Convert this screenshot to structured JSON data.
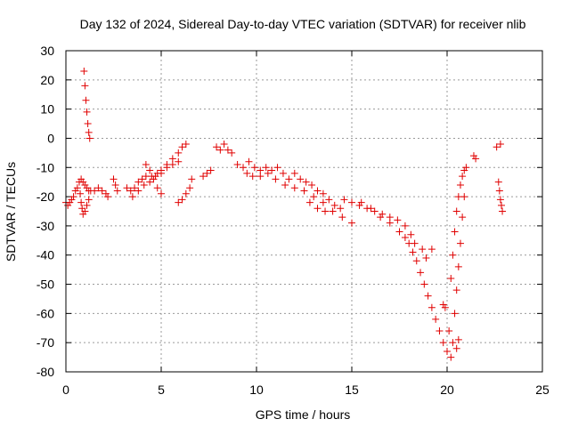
{
  "chart_data": {
    "type": "scatter",
    "title": "Day 132 of 2024, Sidereal Day-to-day VTEC variation (SDTVAR) for receiver nlib",
    "xlabel": "GPS time / hours",
    "ylabel": "SDTVAR / TECUs",
    "xlim": [
      0,
      25
    ],
    "ylim": [
      -80,
      30
    ],
    "xticks": [
      0,
      5,
      10,
      15,
      20,
      25
    ],
    "yticks": [
      30,
      20,
      10,
      0,
      -10,
      -20,
      -30,
      -40,
      -50,
      -60,
      -70,
      -80
    ],
    "grid": true,
    "marker": "+",
    "color": "#e00000",
    "series": [
      {
        "name": "nlib",
        "points": [
          [
            0.0,
            -22
          ],
          [
            0.1,
            -23
          ],
          [
            0.2,
            -22
          ],
          [
            0.3,
            -21
          ],
          [
            0.4,
            -20
          ],
          [
            0.5,
            -18
          ],
          [
            0.6,
            -17
          ],
          [
            0.7,
            -15
          ],
          [
            0.8,
            -14
          ],
          [
            0.9,
            -15
          ],
          [
            1.0,
            -16
          ],
          [
            1.1,
            -17
          ],
          [
            1.2,
            -18
          ],
          [
            1.3,
            -18
          ],
          [
            1.5,
            -18
          ],
          [
            1.7,
            -17
          ],
          [
            1.9,
            -18
          ],
          [
            2.1,
            -19
          ],
          [
            2.2,
            -20
          ],
          [
            0.75,
            -19
          ],
          [
            0.8,
            -22
          ],
          [
            0.85,
            -24
          ],
          [
            0.9,
            -26
          ],
          [
            1.0,
            -25
          ],
          [
            1.1,
            -23
          ],
          [
            1.2,
            -21
          ],
          [
            0.95,
            23
          ],
          [
            1.0,
            18
          ],
          [
            1.05,
            13
          ],
          [
            1.1,
            9
          ],
          [
            1.15,
            5
          ],
          [
            1.2,
            2
          ],
          [
            1.25,
            0
          ],
          [
            2.5,
            -14
          ],
          [
            2.6,
            -16
          ],
          [
            2.7,
            -18
          ],
          [
            3.2,
            -17
          ],
          [
            3.4,
            -18
          ],
          [
            3.6,
            -17
          ],
          [
            3.8,
            -15
          ],
          [
            4.0,
            -14
          ],
          [
            4.2,
            -13
          ],
          [
            4.5,
            -13
          ],
          [
            4.8,
            -12
          ],
          [
            5.0,
            -11
          ],
          [
            5.3,
            -9
          ],
          [
            5.6,
            -7
          ],
          [
            5.9,
            -5
          ],
          [
            6.1,
            -3
          ],
          [
            6.3,
            -2
          ],
          [
            3.5,
            -20
          ],
          [
            3.8,
            -18
          ],
          [
            4.1,
            -16
          ],
          [
            4.4,
            -15
          ],
          [
            4.7,
            -13
          ],
          [
            5.0,
            -12
          ],
          [
            5.3,
            -10
          ],
          [
            5.6,
            -9
          ],
          [
            5.9,
            -8
          ],
          [
            4.2,
            -9
          ],
          [
            4.4,
            -11
          ],
          [
            4.6,
            -14
          ],
          [
            4.8,
            -17
          ],
          [
            5.0,
            -19
          ],
          [
            5.9,
            -22
          ],
          [
            6.1,
            -21
          ],
          [
            6.3,
            -19
          ],
          [
            6.5,
            -17
          ],
          [
            6.6,
            -14
          ],
          [
            7.2,
            -13
          ],
          [
            7.4,
            -12
          ],
          [
            7.6,
            -11
          ],
          [
            7.9,
            -3
          ],
          [
            8.1,
            -4
          ],
          [
            8.3,
            -2
          ],
          [
            8.5,
            -4
          ],
          [
            8.7,
            -5
          ],
          [
            9.0,
            -9
          ],
          [
            9.3,
            -10
          ],
          [
            9.6,
            -8
          ],
          [
            9.9,
            -10
          ],
          [
            10.2,
            -11
          ],
          [
            10.5,
            -10
          ],
          [
            10.8,
            -11
          ],
          [
            11.1,
            -10
          ],
          [
            11.4,
            -12
          ],
          [
            11.7,
            -14
          ],
          [
            12.0,
            -12
          ],
          [
            12.3,
            -14
          ],
          [
            12.6,
            -15
          ],
          [
            12.9,
            -16
          ],
          [
            13.2,
            -18
          ],
          [
            13.5,
            -19
          ],
          [
            13.8,
            -21
          ],
          [
            14.1,
            -23
          ],
          [
            14.4,
            -24
          ],
          [
            9.5,
            -12
          ],
          [
            9.8,
            -13
          ],
          [
            10.2,
            -13
          ],
          [
            10.6,
            -12
          ],
          [
            11.0,
            -14
          ],
          [
            11.5,
            -16
          ],
          [
            12.0,
            -17
          ],
          [
            12.5,
            -18
          ],
          [
            13.0,
            -20
          ],
          [
            13.5,
            -22
          ],
          [
            14.0,
            -25
          ],
          [
            14.5,
            -27
          ],
          [
            15.0,
            -29
          ],
          [
            12.8,
            -22
          ],
          [
            13.2,
            -24
          ],
          [
            13.6,
            -25
          ],
          [
            14.6,
            -21
          ],
          [
            15.0,
            -22
          ],
          [
            15.4,
            -23
          ],
          [
            15.8,
            -24
          ],
          [
            16.2,
            -25
          ],
          [
            16.6,
            -26
          ],
          [
            17.0,
            -27
          ],
          [
            17.4,
            -28
          ],
          [
            17.8,
            -30
          ],
          [
            18.1,
            -33
          ],
          [
            18.3,
            -36
          ],
          [
            15.5,
            -22
          ],
          [
            16.0,
            -24
          ],
          [
            16.5,
            -27
          ],
          [
            17.0,
            -29
          ],
          [
            17.5,
            -32
          ],
          [
            17.8,
            -34
          ],
          [
            18.0,
            -36
          ],
          [
            18.2,
            -39
          ],
          [
            18.4,
            -42
          ],
          [
            18.6,
            -46
          ],
          [
            18.8,
            -50
          ],
          [
            19.0,
            -54
          ],
          [
            19.2,
            -58
          ],
          [
            19.4,
            -62
          ],
          [
            19.6,
            -66
          ],
          [
            19.8,
            -70
          ],
          [
            20.0,
            -73
          ],
          [
            20.2,
            -75
          ],
          [
            18.7,
            -38
          ],
          [
            18.9,
            -41
          ],
          [
            19.2,
            -38
          ],
          [
            19.8,
            -57
          ],
          [
            19.9,
            -58
          ],
          [
            20.1,
            -66
          ],
          [
            20.3,
            -70
          ],
          [
            20.5,
            -72
          ],
          [
            20.6,
            -69
          ],
          [
            20.2,
            -48
          ],
          [
            20.3,
            -40
          ],
          [
            20.4,
            -32
          ],
          [
            20.5,
            -25
          ],
          [
            20.6,
            -20
          ],
          [
            20.7,
            -16
          ],
          [
            20.8,
            -13
          ],
          [
            20.9,
            -11
          ],
          [
            21.0,
            -10
          ],
          [
            20.4,
            -60
          ],
          [
            20.5,
            -52
          ],
          [
            20.6,
            -44
          ],
          [
            20.7,
            -36
          ],
          [
            20.8,
            -27
          ],
          [
            20.9,
            -20
          ],
          [
            21.4,
            -6
          ],
          [
            21.5,
            -7
          ],
          [
            22.6,
            -3
          ],
          [
            22.8,
            -2
          ],
          [
            22.7,
            -15
          ],
          [
            22.75,
            -18
          ],
          [
            22.8,
            -21
          ],
          [
            22.85,
            -23
          ],
          [
            22.9,
            -25
          ]
        ]
      }
    ]
  }
}
